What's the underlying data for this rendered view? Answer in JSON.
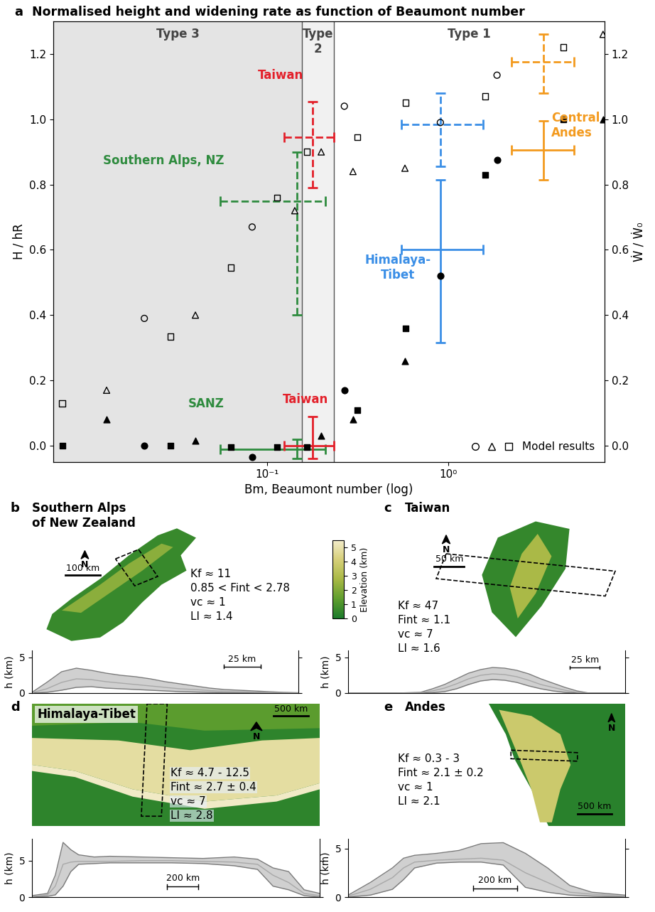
{
  "chart_data": {
    "type": "scatter",
    "panel": "a",
    "title": "Normalised height and widening rate as function of Beaumont number",
    "x_label": "Bm, Beaumont number (log)",
    "y_label": "H / hR",
    "y2_label": "Ẇ / Ẇ₀",
    "log": "x",
    "xlim": [
      0.0066,
      7.3
    ],
    "xticks": [
      {
        "value": 0.1,
        "label": "10⁻¹"
      },
      {
        "value": 1,
        "label": "10⁰"
      }
    ],
    "ylim": [
      -0.05,
      1.3
    ],
    "yticks": [
      {
        "value": 0,
        "label": "0.0"
      },
      {
        "value": 0.2,
        "label": "0.2"
      },
      {
        "value": 0.4,
        "label": "0.4"
      },
      {
        "value": 0.6,
        "label": "0.6"
      },
      {
        "value": 0.8,
        "label": "0.8"
      },
      {
        "value": 1.0,
        "label": "1.0"
      },
      {
        "value": 1.2,
        "label": "1.2"
      }
    ],
    "y2lim": [
      -0.05,
      1.3
    ],
    "y2ticks": [
      {
        "value": 0,
        "label": "0.0"
      },
      {
        "value": 0.2,
        "label": "0.2"
      },
      {
        "value": 0.4,
        "label": "0.4"
      },
      {
        "value": 0.6,
        "label": "0.6"
      },
      {
        "value": 0.8,
        "label": "0.8"
      },
      {
        "value": 1.0,
        "label": "1.0"
      },
      {
        "value": 1.2,
        "label": "1.2"
      }
    ],
    "legend": "lower right",
    "regions": [
      {
        "name": "Type 3",
        "from": 0.0066,
        "to": 0.156,
        "color": "#e4e4e4"
      },
      {
        "name": "Type 2",
        "from": 0.156,
        "to": 0.234,
        "color": "#f1f1f1"
      },
      {
        "name": "Type 1",
        "from": 0.234,
        "to": 7.3,
        "color": "#ffffff"
      }
    ],
    "model_results": {
      "name": "Model results",
      "groups": [
        {
          "marker": "circle",
          "x": [
            0.021,
            0.0827,
            0.267,
            0.905,
            1.86
          ],
          "open": [
            0.39,
            0.67,
            1.04,
            0.99,
            1.135
          ],
          "filled": [
            0.0,
            -0.035,
            0.17,
            0.52,
            0.875
          ]
        },
        {
          "marker": "triangle",
          "x": [
            0.013,
            0.0402,
            0.1422,
            0.199,
            0.298,
            0.577,
            7.16
          ],
          "open": [
            0.17,
            0.4,
            0.72,
            0.9,
            0.84,
            0.85,
            1.26
          ],
          "filled": [
            0.08,
            0.015,
            null,
            0.03,
            0.08,
            0.26,
            1.0
          ]
        },
        {
          "marker": "square",
          "x": [
            0.0074,
            0.0293,
            0.0631,
            0.1135,
            0.166,
            0.315,
            0.582,
            1.6,
            4.32
          ],
          "open": [
            0.13,
            0.335,
            0.545,
            0.76,
            0.9,
            0.945,
            1.05,
            1.07,
            1.22
          ],
          "filled": [
            0.0,
            0.0,
            -0.005,
            -0.005,
            -0.005,
            0.11,
            0.36,
            0.83,
            1.0
          ]
        }
      ]
    },
    "observations": [
      {
        "label": "Southern Alps, NZ",
        "color": "#2e8b3e",
        "line_style": "dashed",
        "x": 0.146,
        "x_range": [
          0.055,
          0.21
        ],
        "y": 0.75,
        "y_range": [
          0.4,
          0.9
        ]
      },
      {
        "label": "SANZ",
        "color": "#2e8b3e",
        "line_style": "solid",
        "x": 0.146,
        "x_range": [
          0.055,
          0.21
        ],
        "y": -0.01,
        "y_range": [
          -0.04,
          0.02
        ]
      },
      {
        "label": "Taiwan",
        "color": "#e3202a",
        "line_style": "dashed",
        "x": 0.178,
        "x_range": [
          0.124,
          0.234
        ],
        "y": 0.945,
        "y_range": [
          0.79,
          1.055
        ]
      },
      {
        "label": "Taiwan",
        "color": "#e3202a",
        "line_style": "solid",
        "x": 0.178,
        "x_range": [
          0.124,
          0.234
        ],
        "y": 0.0,
        "y_range": [
          -0.04,
          0.09
        ]
      },
      {
        "color": "#3a8ee6",
        "line_style": "dashed",
        "x": 0.905,
        "x_range": [
          0.551,
          1.56
        ],
        "y": 0.985,
        "y_range": [
          0.855,
          1.08
        ]
      },
      {
        "label": "Himalaya-\nTibet",
        "color": "#3a8ee6",
        "line_style": "solid",
        "x": 0.905,
        "x_range": [
          0.551,
          1.56
        ],
        "y": 0.6,
        "y_range": [
          0.315,
          0.815
        ]
      },
      {
        "color": "#f39a1e",
        "line_style": "dashed",
        "x": 3.35,
        "x_range": [
          2.23,
          4.94
        ],
        "y": 1.175,
        "y_range": [
          1.08,
          1.26
        ]
      },
      {
        "label": "Central\nAndes",
        "color": "#f39a1e",
        "line_style": "solid",
        "x": 3.35,
        "x_range": [
          2.23,
          4.94
        ],
        "y": 0.905,
        "y_range": [
          0.815,
          0.995
        ]
      }
    ]
  },
  "colorbar": {
    "label": "Elevation (km)",
    "range": [
      0,
      5.5
    ],
    "ticks": [
      0,
      1,
      2,
      3,
      4,
      5
    ]
  },
  "maps": [
    {
      "panel": "b",
      "title": "Southern Alps\nof New Zealand",
      "north": "N",
      "scale_bar": "100 km",
      "params": [
        "Kf ≈ 11",
        "0.85 < Fint < 2.78",
        "vc ≈ 1",
        "LI ≈ 1.4"
      ],
      "profile": {
        "y_label": "h (km)",
        "xlim": [
          0,
          180
        ],
        "ylim": [
          0,
          6
        ],
        "yticks": [
          0,
          5
        ],
        "tick_labels": "y",
        "scale_km": 25,
        "scale_label": "25 km",
        "x": [
          0,
          10,
          20,
          30,
          40,
          50,
          60,
          70,
          80,
          90,
          100,
          110,
          120,
          130,
          140,
          150,
          160,
          170,
          180
        ],
        "max": [
          0.1,
          1.5,
          3.0,
          3.5,
          3.2,
          2.8,
          2.5,
          2.3,
          2.0,
          1.6,
          1.3,
          1.0,
          0.7,
          0.5,
          0.4,
          0.3,
          0.2,
          0.1,
          0.05
        ],
        "mean": [
          0.05,
          0.6,
          1.5,
          2.0,
          1.9,
          1.6,
          1.4,
          1.2,
          1.0,
          0.8,
          0.6,
          0.5,
          0.35,
          0.25,
          0.2,
          0.15,
          0.1,
          0.05,
          0.02
        ],
        "min": [
          0,
          0.1,
          0.4,
          0.8,
          0.9,
          0.7,
          0.6,
          0.5,
          0.4,
          0.3,
          0.2,
          0.15,
          0.1,
          0.05,
          0.02,
          0,
          0,
          0,
          0
        ]
      }
    },
    {
      "panel": "c",
      "title": "Taiwan",
      "north": "N",
      "scale_bar": "50 km",
      "params": [
        "Kf ≈ 47",
        "Fint ≈ 1.1",
        "vc ≈ 7",
        "LI ≈ 1.6"
      ],
      "profile": {
        "y_label": "h (km)",
        "xlim": [
          0,
          230
        ],
        "ylim": [
          0,
          6
        ],
        "yticks": [
          0,
          5
        ],
        "tick_labels": "y",
        "scale_km": 25,
        "scale_label": "25 km",
        "x": [
          0,
          40,
          60,
          70,
          80,
          90,
          100,
          110,
          120,
          130,
          140,
          150,
          160,
          170,
          180,
          190,
          200,
          230
        ],
        "max": [
          0,
          0,
          0.1,
          0.6,
          1.2,
          2.0,
          2.8,
          3.3,
          3.6,
          3.5,
          3.2,
          2.7,
          2.0,
          1.4,
          0.8,
          0.3,
          0,
          0
        ],
        "mean": [
          0,
          0,
          0.05,
          0.3,
          0.7,
          1.3,
          2.0,
          2.5,
          2.7,
          2.6,
          2.3,
          1.8,
          1.2,
          0.8,
          0.4,
          0.1,
          0,
          0
        ],
        "min": [
          0,
          0,
          0,
          0.05,
          0.2,
          0.6,
          1.2,
          1.7,
          1.9,
          1.8,
          1.5,
          1.0,
          0.6,
          0.3,
          0.1,
          0,
          0,
          0
        ]
      }
    },
    {
      "panel": "d",
      "title": "Himalaya-Tibet",
      "north": "N",
      "scale_bar": "500 km",
      "params": [
        "Kf ≈ 4.7 - 12.5",
        "Fint ≈ 2.7 ± 0.4",
        "vc ≈ 7",
        "LI ≈ 2.8"
      ],
      "profile": {
        "y_label": "h (km)",
        "xlim": [
          0,
          1850
        ],
        "ylim": [
          0,
          8
        ],
        "yticks": [
          0,
          5
        ],
        "tick_labels": "y",
        "scale_km": 200,
        "scale_label": "200 km",
        "x": [
          0,
          100,
          150,
          200,
          250,
          300,
          400,
          500,
          700,
          900,
          1100,
          1300,
          1450,
          1550,
          1650,
          1750,
          1850
        ],
        "max": [
          0.2,
          0.5,
          3.0,
          7.5,
          6.5,
          5.8,
          5.5,
          5.6,
          5.5,
          5.4,
          5.3,
          5.5,
          5.2,
          4.0,
          3.5,
          1.0,
          0.5
        ],
        "mean": [
          0.1,
          0.3,
          1.5,
          4.5,
          4.8,
          4.9,
          4.9,
          4.9,
          5.0,
          5.0,
          4.9,
          4.8,
          4.5,
          3.0,
          2.0,
          0.5,
          0.2
        ],
        "min": [
          0,
          0.1,
          0.3,
          1.5,
          3.5,
          4.5,
          4.6,
          4.7,
          4.7,
          4.7,
          4.6,
          4.3,
          3.8,
          1.5,
          1.0,
          0.2,
          0
        ]
      }
    },
    {
      "panel": "e",
      "title": "Andes",
      "north": "N",
      "scale_bar": "500 km",
      "params": [
        "Kf ≈ 0.3 - 3",
        "Fint ≈ 2.1 ± 0.2",
        "vc ≈ 1",
        "LI ≈ 2.1"
      ],
      "profile": {
        "y_label": "h (km)",
        "xlim": [
          0,
          1250
        ],
        "ylim": [
          0,
          6
        ],
        "yticks": [
          0,
          5
        ],
        "tick_labels": "y",
        "scale_km": 200,
        "scale_label": "200 km",
        "x": [
          0,
          100,
          200,
          250,
          300,
          400,
          500,
          600,
          700,
          800,
          900,
          1000,
          1100,
          1250
        ],
        "max": [
          0.2,
          1.5,
          3.0,
          4.0,
          4.3,
          4.5,
          4.8,
          5.5,
          5.6,
          4.5,
          3.0,
          1.2,
          0.5,
          0.2
        ],
        "mean": [
          0.1,
          0.8,
          2.0,
          3.0,
          3.6,
          3.8,
          3.9,
          4.0,
          3.8,
          2.5,
          1.5,
          0.5,
          0.3,
          0.1
        ],
        "min": [
          0,
          0.2,
          0.8,
          1.8,
          3.0,
          3.5,
          3.6,
          3.6,
          3.3,
          1.0,
          0.5,
          0.2,
          0.1,
          0
        ]
      }
    }
  ]
}
